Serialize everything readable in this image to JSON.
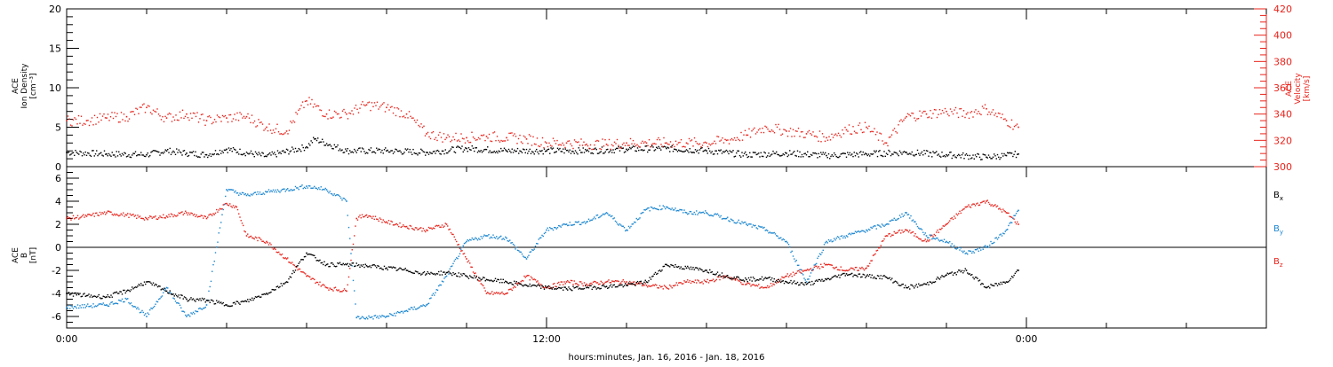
{
  "colors": {
    "black": "#000000",
    "red": "#e8231b",
    "blue": "#1a86d0"
  },
  "xaxis": {
    "title": "hours:minutes, Jan. 16, 2016 - Jan. 18, 2016",
    "range_hours": [
      0,
      30
    ],
    "major_ticks": [
      0,
      12,
      24
    ],
    "tick_labels": [
      "0:00",
      "12:00",
      "0:00"
    ]
  },
  "chart_data": [
    {
      "type": "scatter",
      "panel": "top",
      "title": "",
      "ylabel_lines": [
        "ACE",
        "Ion Density",
        "[cm⁻³]"
      ],
      "ylim": [
        0,
        20
      ],
      "yticks": [
        0,
        5,
        10,
        15,
        20
      ],
      "y2label_lines": [
        "ACE",
        "Velocity",
        "[km/s]"
      ],
      "y2lim": [
        300,
        420
      ],
      "y2ticks": [
        300,
        320,
        340,
        360,
        380,
        400,
        420
      ],
      "grid": false,
      "series": [
        {
          "axis": "left",
          "color": "#000000",
          "x": [
            0,
            1,
            2,
            2.5,
            3,
            3.5,
            4,
            5,
            6,
            6.2,
            7,
            8,
            9,
            10,
            11,
            12,
            13,
            14,
            15,
            16,
            17,
            18,
            19,
            20,
            21,
            22,
            23,
            23.5,
            23.8
          ],
          "y": [
            1.8,
            1.6,
            1.5,
            2.0,
            1.7,
            1.5,
            2.2,
            1.3,
            2.5,
            3.5,
            2.0,
            2.0,
            1.8,
            2.3,
            2.0,
            2.0,
            2.0,
            2.2,
            2.3,
            2.0,
            1.5,
            1.7,
            1.4,
            1.6,
            1.8,
            1.5,
            1.2,
            1.4,
            1.6
          ]
        },
        {
          "axis": "right",
          "color": "#e8231b",
          "x": [
            0,
            0.5,
            1,
            1.5,
            2,
            2.5,
            3,
            3.5,
            4,
            4.5,
            5,
            5.5,
            6,
            6.5,
            7,
            7.5,
            8,
            8.5,
            9,
            9.5,
            10,
            10.5,
            11,
            11.5,
            12,
            12.5,
            13,
            13.5,
            14,
            14.5,
            15,
            15.5,
            16,
            16.5,
            17,
            17.5,
            18,
            18.5,
            19,
            19.5,
            20,
            20.5,
            21,
            21.5,
            22,
            22.5,
            23,
            23.5,
            23.8
          ],
          "y": [
            335,
            335,
            337,
            338,
            345,
            337,
            340,
            335,
            337,
            338,
            330,
            327,
            350,
            340,
            340,
            347,
            345,
            340,
            325,
            322,
            322,
            323,
            322,
            321,
            318,
            318,
            317,
            317,
            318,
            318,
            318,
            318,
            318,
            320,
            324,
            330,
            327,
            325,
            322,
            328,
            330,
            318,
            338,
            340,
            342,
            340,
            344,
            335,
            330
          ]
        }
      ]
    },
    {
      "type": "scatter",
      "panel": "bottom",
      "title": "",
      "ylabel_lines": [
        "ACE",
        "B",
        "[nT]"
      ],
      "ylim": [
        -7,
        7
      ],
      "yticks": [
        -6,
        -4,
        -2,
        0,
        2,
        4,
        6
      ],
      "grid": false,
      "zero_line": true,
      "series": [
        {
          "name": "Bx",
          "color": "#000000",
          "x": [
            0,
            0.5,
            1,
            1.5,
            2,
            2.5,
            3,
            3.5,
            4,
            4.5,
            5,
            5.5,
            6,
            6.5,
            7,
            7.5,
            8,
            8.5,
            9,
            9.5,
            10,
            10.5,
            11,
            11.5,
            12,
            12.5,
            13,
            13.5,
            14,
            14.5,
            15,
            15.5,
            16,
            16.5,
            17,
            17.5,
            18,
            18.5,
            19,
            19.5,
            20,
            20.5,
            21,
            21.5,
            22,
            22.5,
            23,
            23.5,
            23.8
          ],
          "y": [
            -4.0,
            -4.2,
            -4.3,
            -3.8,
            -3.0,
            -3.8,
            -4.5,
            -4.6,
            -5.0,
            -4.7,
            -4.0,
            -3.0,
            -0.5,
            -1.5,
            -1.5,
            -1.6,
            -1.8,
            -2.0,
            -2.3,
            -2.2,
            -2.5,
            -2.8,
            -3.0,
            -3.3,
            -3.5,
            -3.6,
            -3.5,
            -3.4,
            -3.3,
            -3.0,
            -1.5,
            -1.8,
            -2.0,
            -2.5,
            -2.8,
            -2.7,
            -3.0,
            -3.2,
            -2.8,
            -2.3,
            -2.5,
            -2.6,
            -3.5,
            -3.2,
            -2.4,
            -2.0,
            -3.5,
            -3.0,
            -2.0
          ]
        },
        {
          "name": "By",
          "color": "#1a86d0",
          "x": [
            0,
            0.5,
            1,
            1.5,
            2,
            2.5,
            3,
            3.5,
            4,
            4.5,
            5,
            5.5,
            6,
            6.5,
            7,
            7.25,
            7.5,
            8,
            8.5,
            9,
            9.5,
            10,
            10.5,
            11,
            11.5,
            12,
            12.5,
            13,
            13.5,
            14,
            14.5,
            15,
            15.5,
            16,
            16.5,
            17,
            17.5,
            18,
            18.5,
            19,
            19.5,
            20,
            20.5,
            21,
            21.5,
            22,
            22.5,
            23,
            23.5,
            23.8
          ],
          "y": [
            -5.2,
            -5.1,
            -5.0,
            -4.5,
            -6.0,
            -3.5,
            -6.0,
            -5.0,
            5.0,
            4.5,
            4.8,
            5.0,
            5.3,
            5.0,
            4.0,
            -6.1,
            -6.1,
            -6.0,
            -5.5,
            -5.0,
            -2.5,
            0.5,
            1.0,
            0.8,
            -1.0,
            1.5,
            2.0,
            2.2,
            3.0,
            1.5,
            3.3,
            3.5,
            3.0,
            3.0,
            2.5,
            2.0,
            1.5,
            0.5,
            -3.0,
            0.5,
            1.0,
            1.5,
            2.0,
            3.0,
            1.0,
            0.5,
            -0.5,
            0.0,
            1.5,
            3.2
          ]
        },
        {
          "name": "Bz",
          "color": "#e8231b",
          "x": [
            0,
            0.5,
            1,
            1.5,
            2,
            2.5,
            3,
            3.5,
            4,
            4.25,
            4.5,
            5,
            5.5,
            6,
            6.5,
            7,
            7.25,
            7.5,
            8,
            8.5,
            9,
            9.5,
            10,
            10.5,
            11,
            11.5,
            12,
            12.5,
            13,
            13.5,
            14,
            14.5,
            15,
            15.5,
            16,
            16.5,
            17,
            17.5,
            18,
            18.5,
            19,
            19.5,
            20,
            20.5,
            21,
            21.5,
            22,
            22.5,
            23,
            23.5,
            23.8
          ],
          "y": [
            2.5,
            2.7,
            3.0,
            2.8,
            2.5,
            2.7,
            3.0,
            2.5,
            3.8,
            3.5,
            1.0,
            0.5,
            -1.0,
            -2.5,
            -3.5,
            -3.8,
            2.5,
            2.8,
            2.2,
            1.8,
            1.5,
            2.0,
            -1.0,
            -4.0,
            -4.0,
            -2.5,
            -3.5,
            -3.0,
            -3.2,
            -3.0,
            -3.0,
            -3.3,
            -3.5,
            -3.0,
            -3.0,
            -2.5,
            -3.2,
            -3.5,
            -2.5,
            -2.0,
            -1.5,
            -2.0,
            -1.8,
            1.0,
            1.5,
            0.5,
            2.0,
            3.5,
            4.0,
            3.0,
            2.0
          ]
        }
      ],
      "legend": {
        "placement": "right",
        "entries": [
          "Bx",
          "By",
          "Bz"
        ]
      }
    }
  ]
}
